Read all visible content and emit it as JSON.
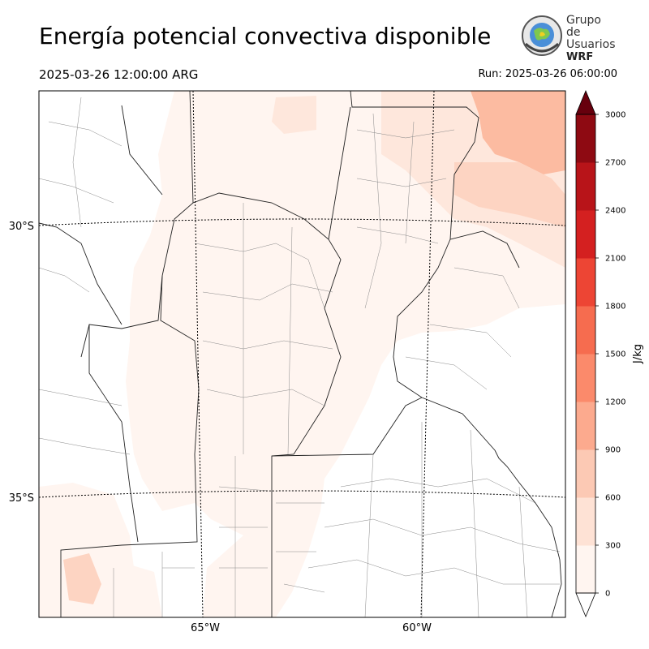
{
  "header": {
    "title": "Energía potencial convectiva disponible",
    "valid_time": "2025-03-26 12:00:00 ARG",
    "run_time": "Run: 2025-03-26 06:00:00"
  },
  "logo": {
    "line1": "Grupo de",
    "line2": "Usuarios",
    "line3": "WRF"
  },
  "map": {
    "lat_labels": [
      "30°S",
      "35°S"
    ],
    "lon_labels": [
      "65°W",
      "60°W"
    ],
    "fill_colors": [
      "#fff5f0",
      "#fee7dc",
      "#fdd4c2",
      "#fcbba1"
    ]
  },
  "colorbar": {
    "unit": "J/kg",
    "ticks": [
      "0",
      "300",
      "600",
      "900",
      "1200",
      "1500",
      "1800",
      "2100",
      "2400",
      "2700",
      "3000"
    ],
    "colors": [
      "#fff5f0",
      "#fee2d5",
      "#fcc9b4",
      "#fcaa8e",
      "#fb8a6b",
      "#f66c4f",
      "#ed4534",
      "#d42020",
      "#b81419",
      "#8e0a12",
      "#67000d"
    ]
  }
}
